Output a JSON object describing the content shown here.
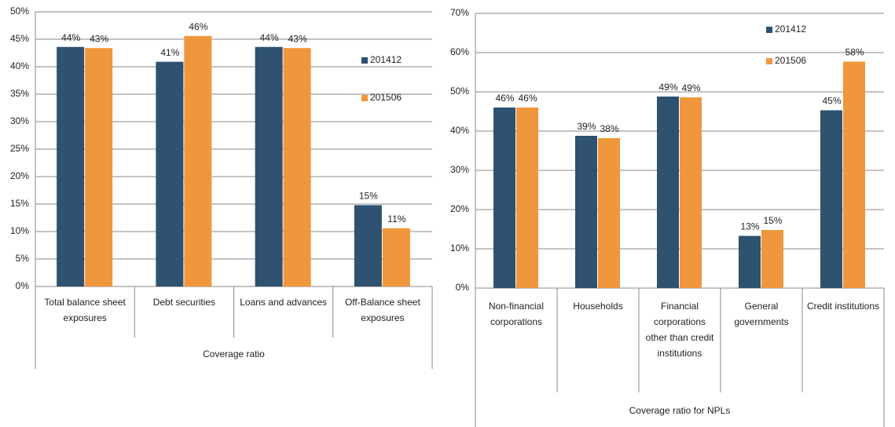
{
  "chart_data": [
    {
      "type": "bar",
      "x_label": "Coverage ratio",
      "categories": [
        "Total balance sheet exposures",
        "Debt securities",
        "Loans and advances",
        "Off-Balance sheet exposures"
      ],
      "series": [
        {
          "name": "201412",
          "color": "#2e5270",
          "values": [
            43.6,
            40.9,
            43.6,
            14.8
          ],
          "value_labels": [
            "44%",
            "41%",
            "44%",
            "15%"
          ]
        },
        {
          "name": "201506",
          "color": "#f0963c",
          "values": [
            43.4,
            45.6,
            43.4,
            10.6
          ],
          "value_labels": [
            "43%",
            "46%",
            "43%",
            "11%"
          ]
        }
      ],
      "ylim": [
        0,
        50
      ],
      "yticks": [
        {
          "value": 0,
          "label": "0%"
        },
        {
          "value": 5,
          "label": "5%"
        },
        {
          "value": 10,
          "label": "10%"
        },
        {
          "value": 15,
          "label": "15%"
        },
        {
          "value": 20,
          "label": "20%"
        },
        {
          "value": 25,
          "label": "25%"
        },
        {
          "value": 30,
          "label": "30%"
        },
        {
          "value": 35,
          "label": "35%"
        },
        {
          "value": 40,
          "label": "40%"
        },
        {
          "value": 45,
          "label": "45%"
        },
        {
          "value": 50,
          "label": "50%"
        }
      ],
      "grid": true
    },
    {
      "type": "bar",
      "x_label": "Coverage ratio for NPLs",
      "categories": [
        "Non-financial corporations",
        "Households",
        "Financial corporations other than credit institutions",
        "General governments",
        "Credit institutions"
      ],
      "series": [
        {
          "name": "201412",
          "color": "#2e5270",
          "values": [
            46,
            38.8,
            48.8,
            13.3,
            45.3
          ],
          "value_labels": [
            "46%",
            "39%",
            "49%",
            "13%",
            "45%"
          ]
        },
        {
          "name": "201506",
          "color": "#f0963c",
          "values": [
            46,
            38.2,
            48.6,
            14.8,
            57.7
          ],
          "value_labels": [
            "46%",
            "38%",
            "49%",
            "15%",
            "58%"
          ]
        }
      ],
      "ylim": [
        0,
        70
      ],
      "yticks": [
        {
          "value": 0,
          "label": "0%"
        },
        {
          "value": 10,
          "label": "10%"
        },
        {
          "value": 20,
          "label": "20%"
        },
        {
          "value": 30,
          "label": "30%"
        },
        {
          "value": 40,
          "label": "40%"
        },
        {
          "value": 50,
          "label": "50%"
        },
        {
          "value": 60,
          "label": "60%"
        },
        {
          "value": 70,
          "label": "70%"
        }
      ],
      "grid": true
    }
  ]
}
